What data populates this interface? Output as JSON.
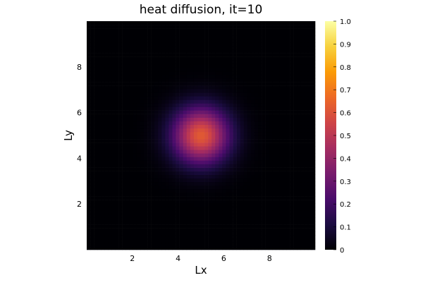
{
  "chart_data": {
    "type": "heatmap",
    "title": "heat diffusion, it=10",
    "xlabel": "Lx",
    "ylabel": "Ly",
    "xlim": [
      0,
      10
    ],
    "ylim": [
      0,
      10
    ],
    "xticks": [
      2,
      4,
      6,
      8
    ],
    "yticks": [
      2,
      4,
      6,
      8
    ],
    "xtick_labels": [
      "2",
      "4",
      "6",
      "8"
    ],
    "ytick_labels": [
      "2",
      "4",
      "6",
      "8"
    ],
    "grid": false,
    "colormap": "inferno",
    "colorbar": {
      "range": [
        0,
        1
      ],
      "ticks": [
        0,
        0.1,
        0.2,
        0.3,
        0.4,
        0.5,
        0.6,
        0.7,
        0.8,
        0.9,
        1.0
      ],
      "tick_labels": [
        "0",
        "0.1",
        "0.2",
        "0.3",
        "0.4",
        "0.5",
        "0.6",
        "0.7",
        "0.8",
        "0.9",
        "1.0"
      ],
      "colors": [
        "#000004",
        "#1b0c41",
        "#4a0c6b",
        "#781c6d",
        "#a52c60",
        "#cf4446",
        "#ed6925",
        "#fb9b06",
        "#f7d13d",
        "#fcffa4"
      ]
    },
    "field": {
      "description_grid": "uniform cells over the domain",
      "nx": 64,
      "ny": 64,
      "center_x": 5.0,
      "center_y": 5.0,
      "peak_value": 0.62,
      "sigma": 0.85
    }
  }
}
